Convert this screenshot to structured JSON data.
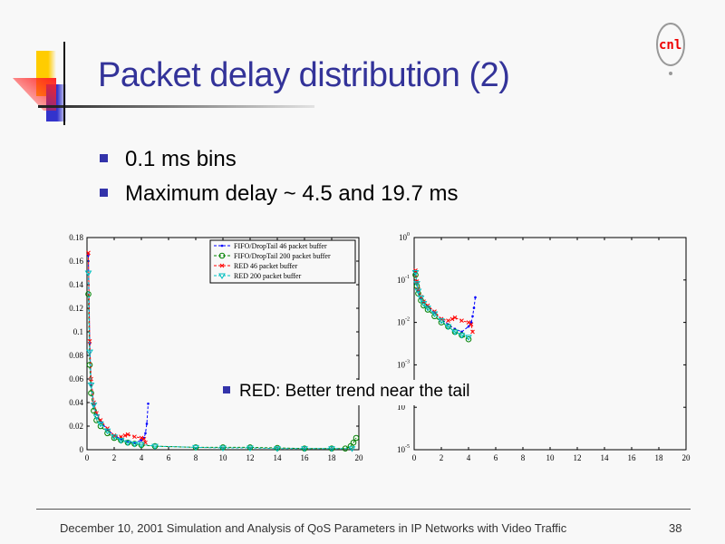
{
  "slide": {
    "title": "Packet delay distribution (2)",
    "bullets": [
      "0.1 ms bins",
      "Maximum delay ~ 4.5 and 19.7 ms"
    ],
    "overlay_bullet": "RED: Better trend near the tail",
    "footer": "December 10, 2001 Simulation and Analysis of QoS Parameters in IP Networks with Video Traffic",
    "page_number": "38",
    "logo_text": "cnl",
    "colors": {
      "title": "#333399",
      "bullet": "#3333aa"
    }
  },
  "chart_data": [
    {
      "type": "line",
      "title": "",
      "xlabel": "",
      "ylabel": "",
      "xlim": [
        0,
        20
      ],
      "ylim": [
        0,
        0.18
      ],
      "yscale": "linear",
      "xticks": [
        "0",
        "2",
        "4",
        "6",
        "8",
        "10",
        "12",
        "14",
        "16",
        "18",
        "20"
      ],
      "yticks": [
        "0",
        "0.02",
        "0.04",
        "0.06",
        "0.08",
        "0.1",
        "0.12",
        "0.14",
        "0.16",
        "0.18"
      ],
      "legend": "top-right",
      "series": [
        {
          "name": "FIFO/DropTail 46 packet buffer",
          "color": "#0000ff",
          "marker": "dot",
          "x": [
            0.1,
            0.2,
            0.3,
            0.5,
            0.7,
            1,
            1.5,
            2,
            2.5,
            3,
            3.5,
            4,
            4.2,
            4.3,
            4.4,
            4.5
          ],
          "y": [
            0.165,
            0.09,
            0.055,
            0.038,
            0.03,
            0.024,
            0.017,
            0.012,
            0.009,
            0.007,
            0.006,
            0.008,
            0.01,
            0.014,
            0.022,
            0.039
          ]
        },
        {
          "name": "FIFO/DropTail 200 packet buffer",
          "color": "#008000",
          "marker": "circle",
          "x": [
            0.1,
            0.2,
            0.3,
            0.5,
            0.7,
            1,
            1.5,
            2,
            2.5,
            3,
            3.5,
            4,
            5,
            8,
            10,
            12,
            14,
            16,
            18,
            19,
            19.4,
            19.6,
            19.8
          ],
          "y": [
            0.132,
            0.072,
            0.048,
            0.033,
            0.025,
            0.02,
            0.014,
            0.01,
            0.008,
            0.006,
            0.005,
            0.004,
            0.003,
            0.002,
            0.002,
            0.002,
            0.0015,
            0.001,
            0.001,
            0.001,
            0.003,
            0.006,
            0.01
          ]
        },
        {
          "name": "RED 46 packet buffer",
          "color": "#ff0000",
          "marker": "x",
          "x": [
            0.1,
            0.2,
            0.3,
            0.5,
            0.7,
            1,
            1.5,
            2,
            2.5,
            2.8,
            3,
            3.5,
            4,
            4.2,
            4.3
          ],
          "y": [
            0.167,
            0.092,
            0.06,
            0.04,
            0.031,
            0.025,
            0.018,
            0.012,
            0.011,
            0.012,
            0.013,
            0.011,
            0.01,
            0.009,
            0.006
          ]
        },
        {
          "name": "RED 200 packet buffer",
          "color": "#00bfbf",
          "marker": "triangle-down",
          "x": [
            0.1,
            0.2,
            0.3,
            0.5,
            0.7,
            1,
            1.5,
            2,
            2.5,
            3,
            3.5,
            4,
            5,
            8,
            10,
            12,
            14,
            16,
            18,
            19.5
          ],
          "y": [
            0.15,
            0.083,
            0.055,
            0.038,
            0.028,
            0.022,
            0.016,
            0.011,
            0.008,
            0.006,
            0.005,
            0.0045,
            0.003,
            0.002,
            0.0015,
            0.0015,
            0.001,
            0.001,
            0.001,
            0.001
          ]
        }
      ]
    },
    {
      "type": "line",
      "title": "",
      "xlabel": "",
      "ylabel": "",
      "xlim": [
        0,
        20
      ],
      "ylim": [
        1e-05,
        1
      ],
      "yscale": "log",
      "xticks": [
        "0",
        "2",
        "4",
        "6",
        "8",
        "10",
        "12",
        "14",
        "16",
        "18",
        "20"
      ],
      "yticks": [
        {
          "base": "10",
          "exp": "0"
        },
        {
          "base": "10",
          "exp": "-1"
        },
        {
          "base": "10",
          "exp": "-2"
        },
        {
          "base": "10",
          "exp": "-3"
        },
        {
          "base": "10",
          "exp": "-4"
        },
        {
          "base": "10",
          "exp": "-5"
        }
      ],
      "x_shown_max": 4.5,
      "series_ref": "same four series as first chart"
    }
  ]
}
